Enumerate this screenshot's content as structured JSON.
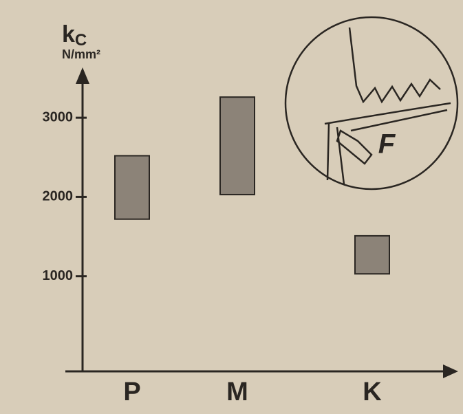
{
  "chart_data": {
    "type": "range_bar",
    "ylabel": "k",
    "ylabel_sub": "C",
    "yunit": "N/mm²",
    "categories": [
      "P",
      "M",
      "K"
    ],
    "values": [
      [
        1720,
        2520
      ],
      [
        2030,
        3260
      ],
      [
        1030,
        1510
      ]
    ],
    "color": "#8c8378",
    "ylim": [
      -200,
      3600
    ],
    "yticks": [
      1000,
      2000,
      3000
    ],
    "inset_label": "F"
  }
}
